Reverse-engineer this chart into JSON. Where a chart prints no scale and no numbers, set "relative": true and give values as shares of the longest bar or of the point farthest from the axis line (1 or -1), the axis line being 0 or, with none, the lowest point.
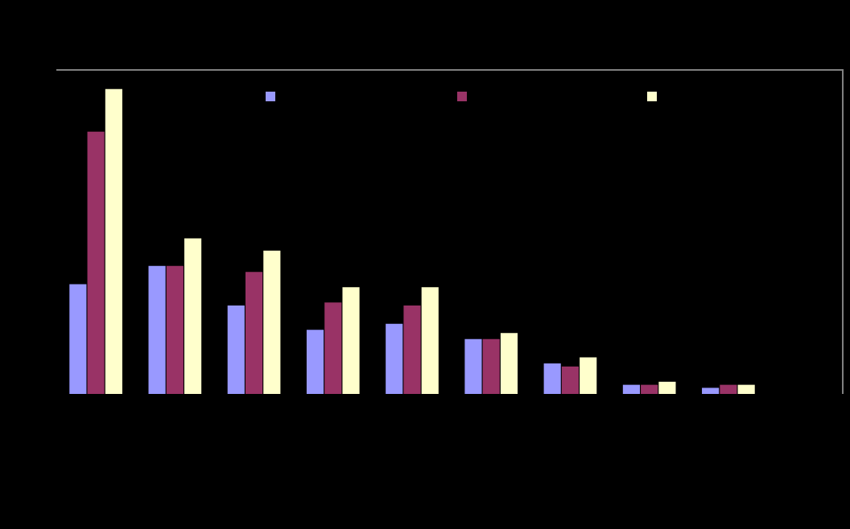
{
  "chart_data": {
    "type": "bar",
    "relative": true,
    "categories": [
      null,
      null,
      null,
      null,
      null,
      null,
      null,
      null,
      null
    ],
    "series": [
      {
        "color": "#9999ff",
        "values": [
          0.36,
          0.42,
          0.29,
          0.21,
          0.23,
          0.18,
          0.1,
          0.03,
          0.02
        ]
      },
      {
        "color": "#993366",
        "values": [
          0.86,
          0.42,
          0.4,
          0.3,
          0.29,
          0.18,
          0.09,
          0.03,
          0.03
        ]
      },
      {
        "color": "#ffffcc",
        "values": [
          1,
          0.51,
          0.47,
          0.35,
          0.35,
          0.2,
          0.12,
          0.04,
          0.03
        ]
      }
    ]
  }
}
